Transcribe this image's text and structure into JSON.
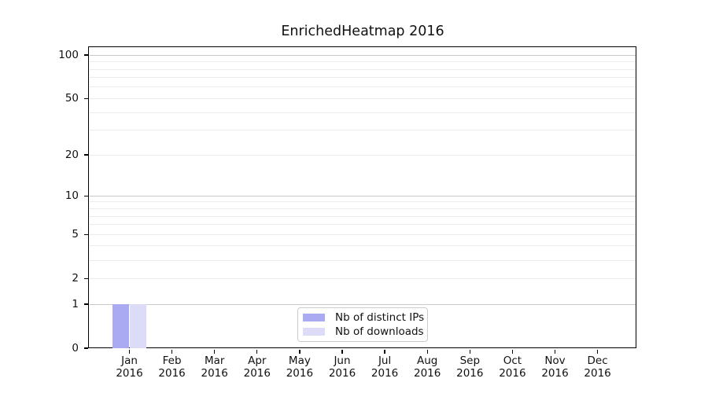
{
  "chart_data": {
    "type": "bar",
    "title": "EnrichedHeatmap 2016",
    "x_year": "2016",
    "categories": [
      "Jan",
      "Feb",
      "Mar",
      "Apr",
      "May",
      "Jun",
      "Jul",
      "Aug",
      "Sep",
      "Oct",
      "Nov",
      "Dec"
    ],
    "series": [
      {
        "name": "Nb of distinct IPs",
        "color": "#aaaaf2",
        "values": [
          1,
          0,
          0,
          0,
          0,
          0,
          0,
          0,
          0,
          0,
          0,
          0
        ]
      },
      {
        "name": "Nb of downloads",
        "color": "#dcdcf8",
        "values": [
          1,
          0,
          0,
          0,
          0,
          0,
          0,
          0,
          0,
          0,
          0,
          0
        ]
      }
    ],
    "y_axis": {
      "scale": "log1p",
      "ticks": [
        0,
        1,
        2,
        5,
        10,
        20,
        50,
        100
      ],
      "minor_ticks": [
        3,
        4,
        6,
        7,
        8,
        9,
        30,
        40,
        60,
        70,
        80,
        90
      ],
      "emphasized_gridlines": [
        1,
        10,
        100
      ],
      "max": 115
    },
    "grid": "horizontal",
    "legend_position": "lower center",
    "style": {
      "major_grid_color": "#c9c9c9",
      "light_grid_color": "#ececec",
      "spine_color": "#000000",
      "text_color": "#111111",
      "background_color": "#ffffff",
      "legend_border_color": "#cccccc"
    }
  }
}
